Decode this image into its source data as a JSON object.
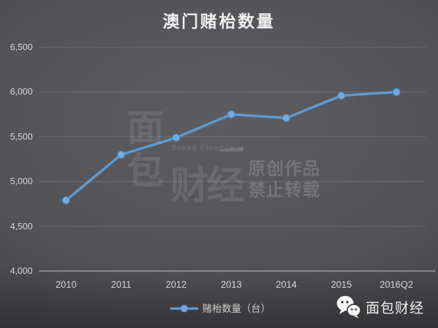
{
  "title": "澳门赌枱数量",
  "chart_data": {
    "type": "line",
    "title": "澳门赌枱数量",
    "categories": [
      "2010",
      "2011",
      "2012",
      "2013",
      "2014",
      "2015",
      "2016Q2"
    ],
    "series": [
      {
        "name": "赌枱数量（台）",
        "values": [
          4790,
          5300,
          5490,
          5750,
          5710,
          5960,
          6000
        ]
      }
    ],
    "ylim": [
      4000,
      6500
    ],
    "yticks": [
      {
        "value": 4000,
        "label": "4,000"
      },
      {
        "value": 4500,
        "label": "4,500"
      },
      {
        "value": 5000,
        "label": "5,000"
      },
      {
        "value": 5500,
        "label": "5,500"
      },
      {
        "value": 6000,
        "label": "6,000"
      },
      {
        "value": 6500,
        "label": "6,500"
      }
    ],
    "grid": true,
    "legend_position": "bottom",
    "line_color": "#5b9bd5",
    "marker_fill": "#74abdf",
    "marker_stroke": "#4a86c0"
  },
  "legend": {
    "label": "赌枱数量（台）"
  },
  "watermark": {
    "logo_char_top": "面",
    "logo_char_bottom": "包",
    "brand_latin": "Bread Finance",
    "brand_cn": "财经",
    "notice_line1": "原创作品",
    "notice_line2": "禁止转载"
  },
  "footer": {
    "brand": "面包财经"
  }
}
